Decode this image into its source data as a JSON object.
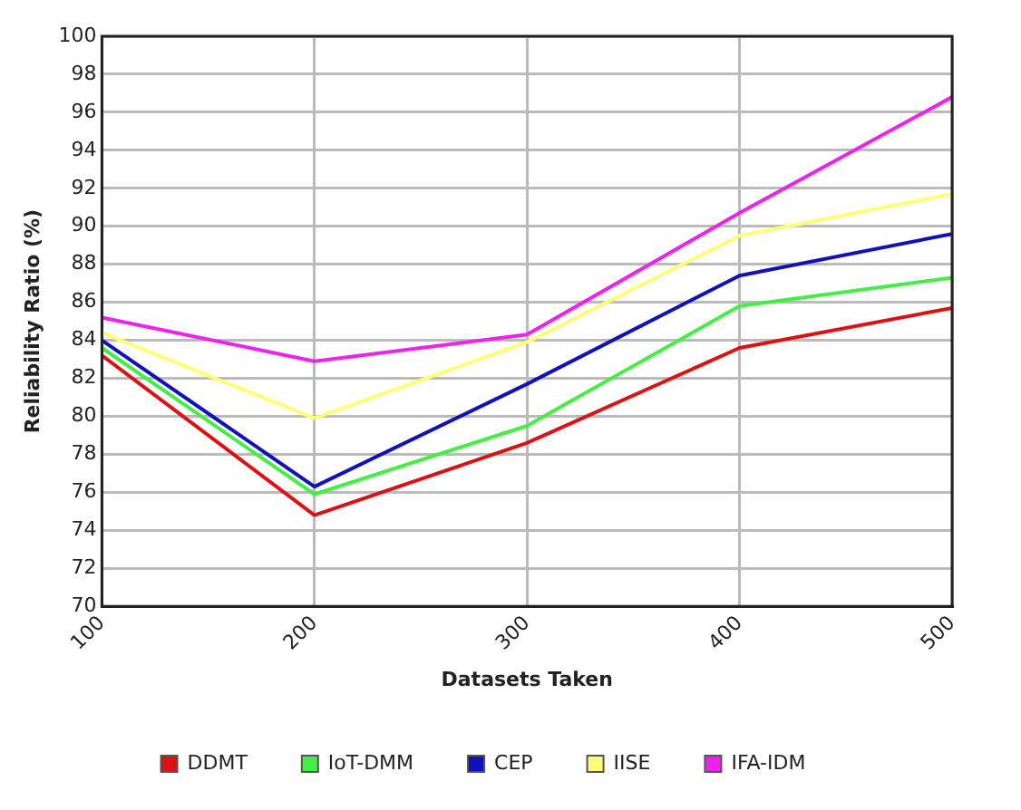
{
  "chart_data": {
    "type": "line",
    "xlabel": "Datasets Taken",
    "ylabel": "Reliability Ratio (%)",
    "x": [
      100,
      200,
      300,
      400,
      500
    ],
    "xlim": [
      100,
      500
    ],
    "xticks": [
      100,
      200,
      300,
      400,
      500
    ],
    "ylim": [
      70,
      100
    ],
    "yticks": [
      70,
      72,
      74,
      76,
      78,
      80,
      82,
      84,
      86,
      88,
      90,
      92,
      94,
      96,
      98,
      100
    ],
    "grid": true,
    "legend": "bottom",
    "marker": "none",
    "line_style": "solid",
    "series": [
      {
        "name": "DDMT",
        "color": "#dd1111",
        "values": [
          83.2,
          74.8,
          78.6,
          83.6,
          85.7
        ]
      },
      {
        "name": "IoT-DMM",
        "color": "#44ee44",
        "values": [
          83.6,
          75.9,
          79.5,
          85.8,
          87.3
        ]
      },
      {
        "name": "CEP",
        "color": "#1111bb",
        "values": [
          84.0,
          76.3,
          81.7,
          87.4,
          89.6
        ]
      },
      {
        "name": "IISE",
        "color": "#ffff77",
        "values": [
          84.4,
          79.9,
          83.9,
          89.5,
          91.7
        ]
      },
      {
        "name": "IFA-IDM",
        "color": "#ee22ee",
        "values": [
          85.2,
          82.9,
          84.3,
          90.7,
          96.8
        ]
      }
    ]
  }
}
